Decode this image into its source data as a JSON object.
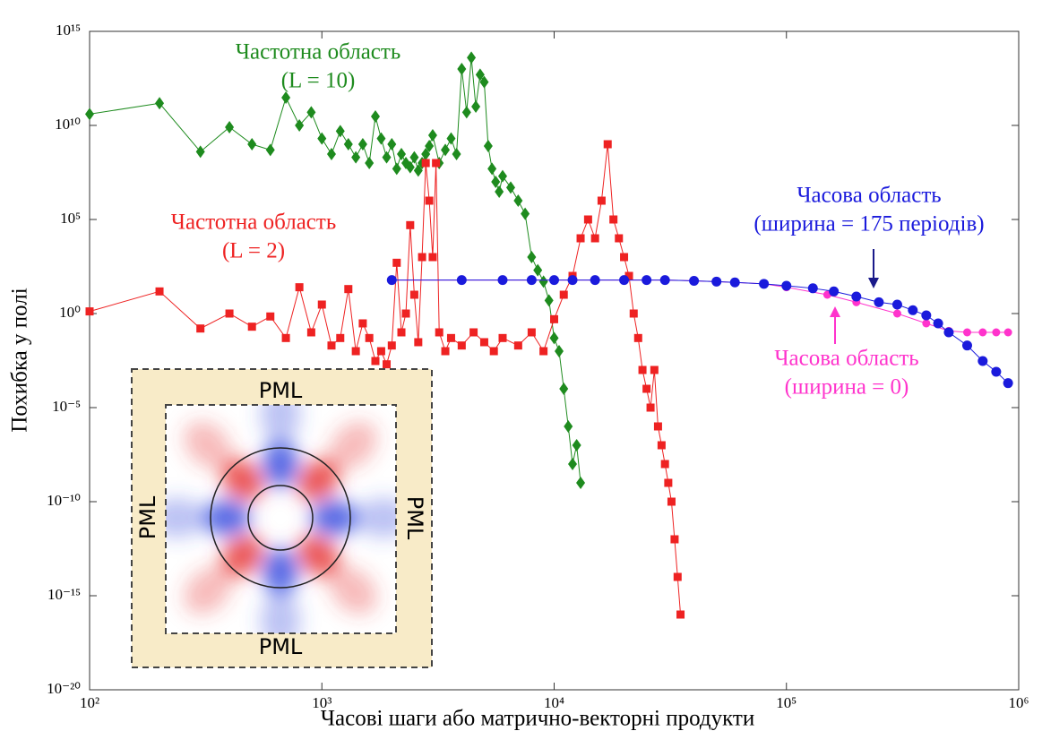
{
  "chart_data": {
    "type": "line",
    "x_label": "Часові шаги або матрично-векторні продукти",
    "y_label": "Похибка у полі",
    "log_x": true,
    "log_y": true,
    "grid": false,
    "xlim": [
      100,
      1000000
    ],
    "xticks": [
      {
        "value": 100,
        "label": "10²"
      },
      {
        "value": 1000,
        "label": "10³"
      },
      {
        "value": 10000,
        "label": "10⁴"
      },
      {
        "value": 100000,
        "label": "10⁵"
      },
      {
        "value": 1000000,
        "label": "10⁶"
      }
    ],
    "ylim": [
      1e-20,
      1000000000000000.0
    ],
    "yticks": [
      {
        "value": 1e-20,
        "label": "10⁻²⁰"
      },
      {
        "value": 1e-15,
        "label": "10⁻¹⁵"
      },
      {
        "value": 1e-10,
        "label": "10⁻¹⁰"
      },
      {
        "value": 1e-05,
        "label": "10⁻⁵"
      },
      {
        "value": 1,
        "label": "10⁰"
      },
      {
        "value": 100000,
        "label": "10⁵"
      },
      {
        "value": 10000000000.0,
        "label": "10¹⁰"
      },
      {
        "value": 1000000000000000.0,
        "label": "10¹⁵"
      }
    ],
    "series": [
      {
        "name": "Частотна область",
        "note": "(L = 10)",
        "color": "#1e8b1e",
        "marker": "diamond",
        "x": [
          100,
          200,
          300,
          400,
          500,
          600,
          700,
          800,
          900,
          1000,
          1100,
          1200,
          1300,
          1400,
          1500,
          1600,
          1700,
          1800,
          1900,
          2000,
          2100,
          2200,
          2300,
          2400,
          2500,
          2600,
          2700,
          2800,
          2900,
          3000,
          3200,
          3400,
          3600,
          3800,
          4000,
          4200,
          4400,
          4600,
          4800,
          5000,
          5200,
          5400,
          5600,
          5800,
          6000,
          6500,
          7000,
          7500,
          8000,
          8500,
          9000,
          9500,
          10000,
          10500,
          11000,
          11500,
          12000,
          12500,
          13000
        ],
        "values": [
          40000000000.0,
          150000000000.0,
          400000000.0,
          8000000000.0,
          1000000000.0,
          500000000.0,
          300000000000.0,
          10000000000.0,
          50000000000.0,
          2000000000.0,
          300000000.0,
          5000000000.0,
          1000000000.0,
          200000000.0,
          1000000000.0,
          100000000.0,
          30000000000.0,
          2000000000.0,
          200000000.0,
          1000000000.0,
          50000000.0,
          300000000.0,
          100000000.0,
          60000000.0,
          200000000.0,
          40000000.0,
          100000000.0,
          300000000.0,
          800000000.0,
          3000000000.0,
          100000000.0,
          500000000.0,
          2000000000.0,
          300000000.0,
          10000000000000.0,
          50000000000.0,
          40000000000000.0,
          100000000000.0,
          5000000000000.0,
          2000000000000.0,
          800000000.0,
          50000000.0,
          10000000.0,
          3000000.0,
          20000000.0,
          5000000.0,
          1000000.0,
          200000.0,
          1000,
          200,
          50,
          5,
          0.05,
          0.01,
          0.0001,
          1e-06,
          1e-08,
          1e-07,
          1e-09
        ]
      },
      {
        "name": "Частотна область",
        "note": "(L = 2)",
        "color": "#ee2222",
        "marker": "square",
        "x": [
          100,
          200,
          300,
          400,
          500,
          600,
          700,
          800,
          900,
          1000,
          1100,
          1200,
          1300,
          1400,
          1500,
          1600,
          1700,
          1800,
          1900,
          2000,
          2100,
          2200,
          2300,
          2400,
          2500,
          2600,
          2700,
          2800,
          2900,
          3000,
          3100,
          3200,
          3400,
          3600,
          4000,
          4500,
          5000,
          5500,
          6000,
          7000,
          8000,
          9000,
          10000,
          11000,
          12000,
          13000,
          14000,
          15000,
          16000,
          17000,
          18000,
          19000,
          20000,
          21000,
          22000,
          23000,
          24000,
          25000,
          26000,
          27000,
          28000,
          29000,
          30000,
          31000,
          32000,
          33000,
          34000,
          35000
        ],
        "values": [
          1.3,
          15,
          0.16,
          1,
          0.2,
          0.7,
          0.05,
          25,
          0.1,
          3,
          0.02,
          0.05,
          20,
          0.01,
          0.3,
          0.05,
          0.003,
          0.01,
          0.002,
          0.02,
          500,
          0.1,
          1,
          50000,
          10,
          0.03,
          1000,
          100000000.0,
          1000000.0,
          1000,
          100000000.0,
          0.1,
          0.01,
          0.05,
          0.02,
          0.1,
          0.03,
          0.01,
          0.05,
          0.02,
          0.1,
          0.01,
          0.5,
          10,
          100,
          10000,
          100000,
          10000,
          1000000.0,
          1000000000.0,
          100000,
          10000,
          1000,
          100,
          1,
          0.05,
          0.001,
          0.0001,
          1e-05,
          0.001,
          1e-06,
          1e-07,
          1e-08,
          1e-09,
          1e-10,
          1e-12,
          1e-14,
          1e-16
        ]
      },
      {
        "name": "Часова область",
        "note": "(ширина = 0)",
        "color": "#ff33cc",
        "marker": "circle",
        "x": [
          2000,
          4000,
          6000,
          8000,
          10000,
          12000,
          15000,
          20000,
          25000,
          30000,
          40000,
          50000,
          60000,
          80000,
          100000,
          150000,
          200000,
          300000,
          400000,
          500000,
          600000,
          700000,
          800000,
          900000
        ],
        "values": [
          60,
          60,
          60,
          60,
          60,
          60,
          60,
          60,
          60,
          60,
          55,
          50,
          45,
          38,
          25,
          10,
          4,
          1,
          0.3,
          0.12,
          0.1,
          0.1,
          0.1,
          0.1
        ]
      },
      {
        "name": "Часова область",
        "note": "(ширина = 175 періодів)",
        "color": "#1a1adc",
        "marker": "circle",
        "x": [
          2000,
          4000,
          6000,
          8000,
          10000,
          12000,
          15000,
          20000,
          25000,
          30000,
          40000,
          50000,
          60000,
          80000,
          100000,
          130000,
          160000,
          200000,
          250000,
          300000,
          350000,
          400000,
          450000,
          500000,
          600000,
          700000,
          800000,
          900000
        ],
        "values": [
          60,
          60,
          60,
          60,
          60,
          60,
          60,
          60,
          60,
          60,
          55,
          50,
          45,
          38,
          30,
          22,
          15,
          8,
          4,
          3,
          1.5,
          0.8,
          0.3,
          0.1,
          0.02,
          0.003,
          0.0008,
          0.0002
        ]
      }
    ]
  },
  "inset": {
    "labels": [
      "PML",
      "PML",
      "PML",
      "PML"
    ]
  }
}
